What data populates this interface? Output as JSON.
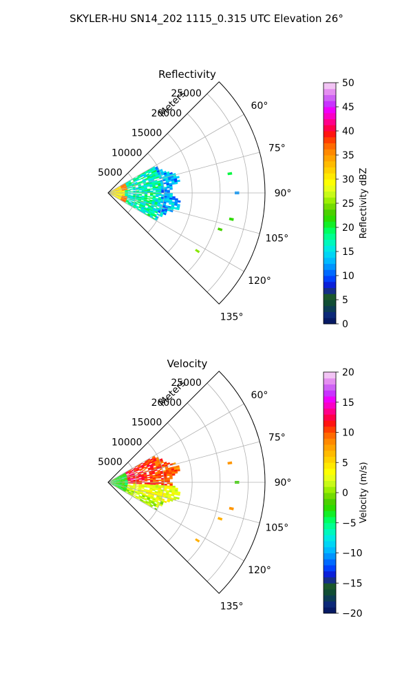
{
  "figure": {
    "suptitle": "SKYLER-HU  SN14_202  1115_0.315 UTC Elevation 26°"
  },
  "chart_data": [
    {
      "type": "heatmap",
      "title": "Reflectivity",
      "projection": "polar-sector",
      "range_axis_label": "Meters",
      "range_ticks": [
        5000,
        10000,
        15000,
        20000,
        25000
      ],
      "range_tick_labels": [
        "5000",
        "10000",
        "15000",
        "20000",
        "25000"
      ],
      "rmax": 28000,
      "azimuth_range_deg": [
        45,
        135
      ],
      "azimuth_ticks": [
        60,
        75,
        90,
        105,
        120,
        135
      ],
      "azimuth_tick_labels": [
        "60°",
        "75°",
        "90°",
        "105°",
        "120°",
        "135°"
      ],
      "grid": true,
      "colorbar": {
        "label": "Reflectivity dBZ",
        "vmin": 0,
        "vmax": 50,
        "ticks": [
          0,
          5,
          10,
          15,
          20,
          25,
          30,
          35,
          40,
          45,
          50
        ],
        "tick_labels": [
          "0",
          "5",
          "10",
          "15",
          "20",
          "25",
          "30",
          "35",
          "40",
          "45",
          "50"
        ]
      },
      "field_approximation": {
        "main_echo": {
          "azimuth_deg": [
            60,
            120
          ],
          "range_m": [
            0,
            13000
          ]
        },
        "core": {
          "range_m": [
            0,
            3000
          ],
          "value": 30
        },
        "body_value": 17,
        "scatter_echoes": [
          {
            "azimuth_deg": 81,
            "range_m": 22000,
            "value": 20
          },
          {
            "azimuth_deg": 90,
            "range_m": 23000,
            "value": 12
          },
          {
            "azimuth_deg": 102,
            "range_m": 22500,
            "value": 22
          },
          {
            "azimuth_deg": 108,
            "range_m": 21000,
            "value": 23
          },
          {
            "azimuth_deg": 123,
            "range_m": 19000,
            "value": 25
          }
        ]
      }
    },
    {
      "type": "heatmap",
      "title": "Velocity",
      "projection": "polar-sector",
      "range_axis_label": "Meters",
      "range_ticks": [
        5000,
        10000,
        15000,
        20000,
        25000
      ],
      "range_tick_labels": [
        "5000",
        "10000",
        "15000",
        "20000",
        "25000"
      ],
      "rmax": 28000,
      "azimuth_range_deg": [
        45,
        135
      ],
      "azimuth_ticks": [
        60,
        75,
        90,
        105,
        120,
        135
      ],
      "azimuth_tick_labels": [
        "60°",
        "75°",
        "90°",
        "105°",
        "120°",
        "135°"
      ],
      "grid": true,
      "colorbar": {
        "label": "Velocity (m/s)",
        "vmin": -20,
        "vmax": 20,
        "ticks": [
          -20,
          -15,
          -10,
          -5,
          0,
          5,
          10,
          15,
          20
        ],
        "tick_labels": [
          "−20",
          "−15",
          "−10",
          "−5",
          "0",
          "5",
          "10",
          "15",
          "20"
        ]
      },
      "field_approximation": {
        "main_echo": {
          "azimuth_deg": [
            60,
            120
          ],
          "range_m": [
            0,
            13000
          ]
        },
        "near_value": -3,
        "north_value": 13,
        "south_value": 3,
        "scatter_echoes": [
          {
            "azimuth_deg": 81,
            "range_m": 22000,
            "value": 8
          },
          {
            "azimuth_deg": 90,
            "range_m": 23000,
            "value": -2
          },
          {
            "azimuth_deg": 102,
            "range_m": 22500,
            "value": 8
          },
          {
            "azimuth_deg": 108,
            "range_m": 21000,
            "value": 7
          },
          {
            "azimuth_deg": 123,
            "range_m": 19000,
            "value": 7
          }
        ]
      }
    }
  ]
}
